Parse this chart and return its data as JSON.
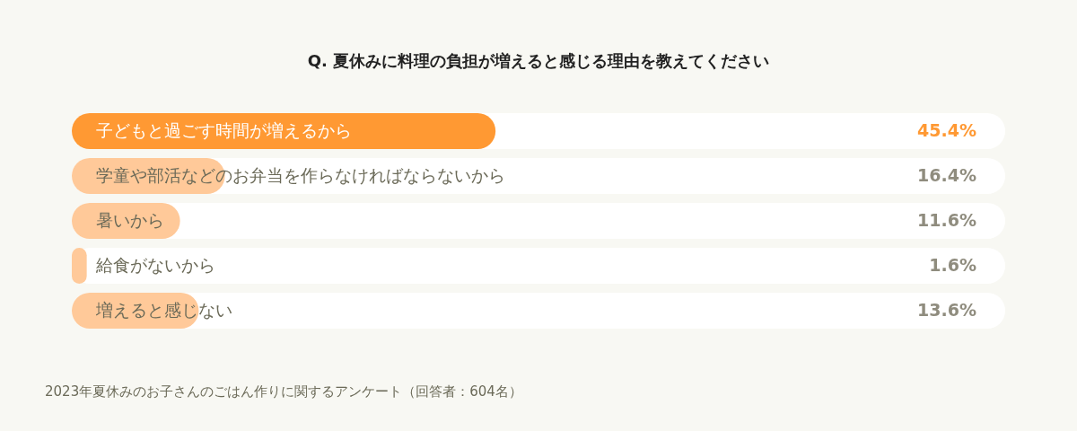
{
  "chart_data": {
    "type": "bar",
    "orientation": "horizontal",
    "title": "Q. 夏休みに料理の負担が増えると感じる理由を教えてください",
    "categories": [
      "子どもと過ごす時間が増えるから",
      "学童や部活などのお弁当を作らなければならないから",
      "暑いから",
      "給食がないから",
      "増えると感じない"
    ],
    "values": [
      45.4,
      16.4,
      11.6,
      1.6,
      13.6
    ],
    "colors": [
      "#ff9933",
      "#ffc999",
      "#ffc999",
      "#ffc999",
      "#ffc999"
    ],
    "value_labels": [
      "45.4%",
      "16.4%",
      "11.6%",
      "1.6%",
      "13.6%"
    ],
    "xlim": [
      0,
      100
    ],
    "tick_labels": "y",
    "annotations": [
      "2023年夏休みのお子さんのごはん作りに関するアンケート（回答者：604名）"
    ]
  }
}
